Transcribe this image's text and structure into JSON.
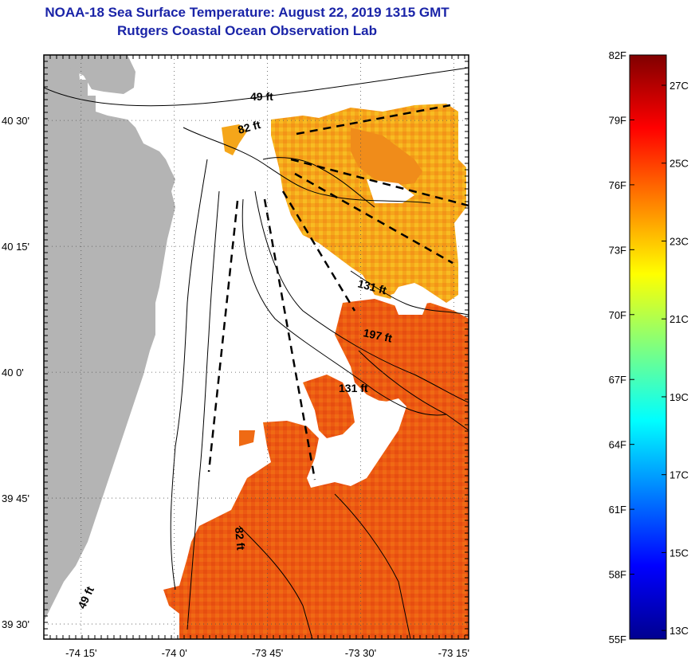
{
  "header": {
    "title": "NOAA-18 Sea Surface Temperature:  August 22, 2019 1315 GMT",
    "subtitle": "Rutgers Coastal Ocean Observation Lab"
  },
  "map": {
    "lat_labels": [
      "40 30'",
      "40 15'",
      "40 0'",
      "39 45'",
      "39 30'"
    ],
    "lon_labels": [
      "-74 15'",
      "-74 0'",
      "-73 45'",
      "-73 30'",
      "-73 15'"
    ],
    "lat_values": [
      40.5,
      40.25,
      40.0,
      39.75,
      39.5
    ],
    "lon_values": [
      -74.25,
      -74.0,
      -73.75,
      -73.5,
      -73.25
    ],
    "depth_labels": [
      "49 ft",
      "82 ft",
      "131 ft",
      "197 ft",
      "131 ft",
      "82 ft",
      "49 ft"
    ],
    "colors": {
      "land": "#b4b4b4",
      "water_nodata": "#ffffff"
    }
  },
  "colorbar": {
    "f_labels": [
      "82F",
      "79F",
      "76F",
      "73F",
      "70F",
      "67F",
      "64F",
      "61F",
      "58F",
      "55F"
    ],
    "c_labels": [
      "27C",
      "25C",
      "23C",
      "21C",
      "19C",
      "17C",
      "15C",
      "13C"
    ],
    "range_f": [
      55,
      82
    ],
    "colormap": "jet"
  }
}
